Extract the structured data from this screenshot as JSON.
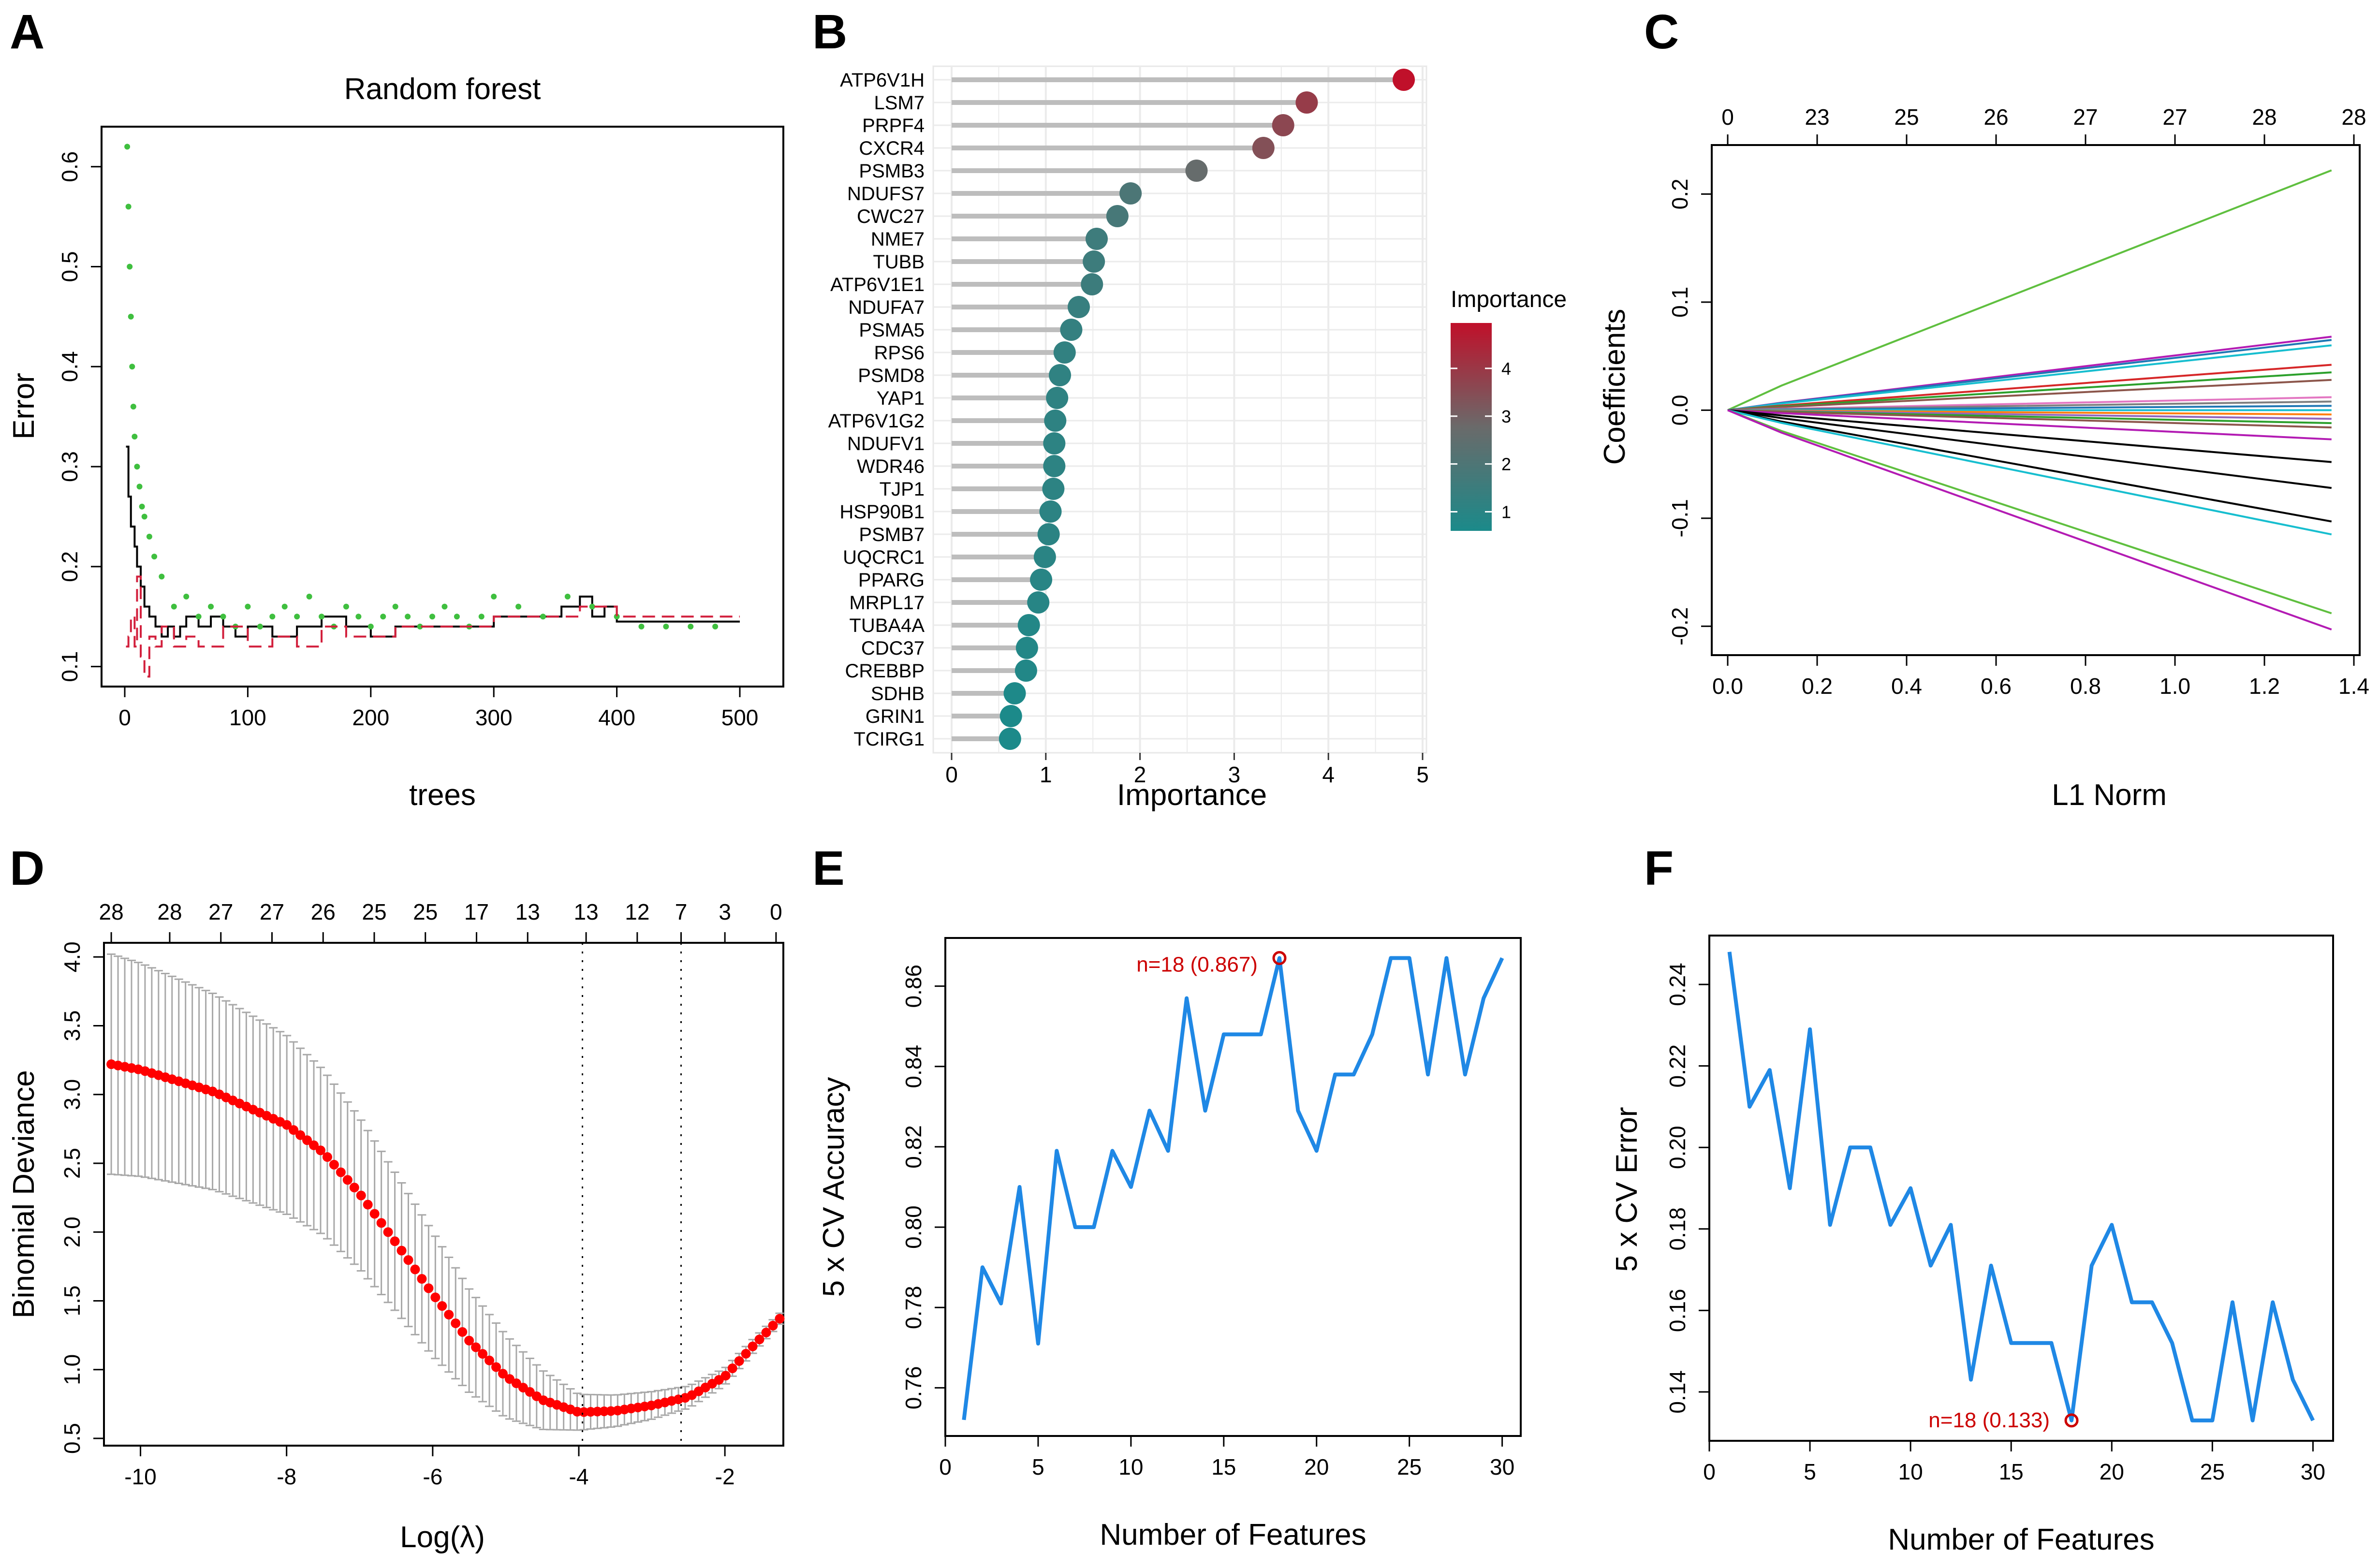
{
  "panels": {
    "A": {
      "letter": "A",
      "title": "Random forest",
      "xlabel": "trees",
      "ylabel": "Error"
    },
    "B": {
      "letter": "B",
      "xlabel": "Importance",
      "legend_title": "Importance"
    },
    "C": {
      "letter": "C",
      "xlabel": "L1 Norm",
      "ylabel": "Coefficients"
    },
    "D": {
      "letter": "D",
      "xlabel": "Log(λ)",
      "ylabel": "Binomial Deviance"
    },
    "E": {
      "letter": "E",
      "xlabel": "Number of Features",
      "ylabel": "5 x CV Accuracy",
      "annotation": "n=18 (0.867)"
    },
    "F": {
      "letter": "F",
      "xlabel": "Number of Features",
      "ylabel": "5 x CV Error",
      "annotation": "n=18 (0.133)"
    }
  },
  "colors": {
    "green": "#3fbf3f",
    "red": "#d21f3c",
    "black": "#000000",
    "blue": "#1f88e5",
    "low": "#1b8a8a",
    "mid": "#6a6a6a",
    "high": "#c0102a",
    "errorbar": "#a8a8a8",
    "point": "#ff0000",
    "annot": "#cc0000"
  },
  "chart_data": [
    {
      "id": "A",
      "type": "line",
      "title": "Random forest",
      "xlabel": "trees",
      "ylabel": "Error",
      "xlim": [
        0,
        500
      ],
      "ylim": [
        0.08,
        0.64
      ],
      "xticks": [
        0,
        100,
        200,
        300,
        400,
        500
      ],
      "yticks": [
        0.1,
        0.2,
        0.3,
        0.4,
        0.5,
        0.6
      ],
      "series": [
        {
          "name": "OOB",
          "style": "solid",
          "color": "black",
          "points": [
            [
              1,
              0.32
            ],
            [
              3,
              0.27
            ],
            [
              5,
              0.24
            ],
            [
              8,
              0.22
            ],
            [
              10,
              0.2
            ],
            [
              13,
              0.18
            ],
            [
              16,
              0.16
            ],
            [
              20,
              0.15
            ],
            [
              25,
              0.14
            ],
            [
              30,
              0.13
            ],
            [
              35,
              0.14
            ],
            [
              40,
              0.13
            ],
            [
              45,
              0.14
            ],
            [
              50,
              0.15
            ],
            [
              60,
              0.14
            ],
            [
              70,
              0.15
            ],
            [
              80,
              0.14
            ],
            [
              90,
              0.13
            ],
            [
              100,
              0.14
            ],
            [
              120,
              0.13
            ],
            [
              140,
              0.14
            ],
            [
              160,
              0.15
            ],
            [
              180,
              0.14
            ],
            [
              200,
              0.13
            ],
            [
              220,
              0.14
            ],
            [
              240,
              0.14
            ],
            [
              260,
              0.14
            ],
            [
              280,
              0.14
            ],
            [
              290,
              0.14
            ],
            [
              300,
              0.15
            ],
            [
              320,
              0.15
            ],
            [
              340,
              0.15
            ],
            [
              355,
              0.16
            ],
            [
              370,
              0.17
            ],
            [
              380,
              0.15
            ],
            [
              390,
              0.16
            ],
            [
              400,
              0.145
            ],
            [
              450,
              0.145
            ],
            [
              500,
              0.145
            ]
          ]
        },
        {
          "name": "class 1",
          "style": "points",
          "color": "green",
          "points": [
            [
              2,
              0.62
            ],
            [
              3,
              0.56
            ],
            [
              4,
              0.5
            ],
            [
              5,
              0.45
            ],
            [
              6,
              0.4
            ],
            [
              7,
              0.36
            ],
            [
              8,
              0.33
            ],
            [
              10,
              0.3
            ],
            [
              12,
              0.28
            ],
            [
              14,
              0.26
            ],
            [
              16,
              0.25
            ],
            [
              20,
              0.23
            ],
            [
              24,
              0.21
            ],
            [
              30,
              0.19
            ],
            [
              40,
              0.16
            ],
            [
              50,
              0.17
            ],
            [
              60,
              0.15
            ],
            [
              70,
              0.16
            ],
            [
              80,
              0.15
            ],
            [
              90,
              0.14
            ],
            [
              100,
              0.16
            ],
            [
              110,
              0.14
            ],
            [
              120,
              0.15
            ],
            [
              130,
              0.16
            ],
            [
              140,
              0.15
            ],
            [
              150,
              0.17
            ],
            [
              160,
              0.15
            ],
            [
              170,
              0.14
            ],
            [
              180,
              0.16
            ],
            [
              190,
              0.15
            ],
            [
              200,
              0.14
            ],
            [
              210,
              0.15
            ],
            [
              220,
              0.16
            ],
            [
              230,
              0.15
            ],
            [
              240,
              0.14
            ],
            [
              250,
              0.15
            ],
            [
              260,
              0.16
            ],
            [
              270,
              0.15
            ],
            [
              280,
              0.14
            ],
            [
              290,
              0.15
            ],
            [
              300,
              0.17
            ],
            [
              320,
              0.16
            ],
            [
              340,
              0.15
            ],
            [
              360,
              0.17
            ],
            [
              380,
              0.16
            ],
            [
              400,
              0.15
            ],
            [
              420,
              0.14
            ],
            [
              440,
              0.14
            ],
            [
              460,
              0.14
            ],
            [
              480,
              0.14
            ]
          ]
        },
        {
          "name": "class 2",
          "style": "dashed",
          "color": "red",
          "points": [
            [
              1,
              0.12
            ],
            [
              3,
              0.13
            ],
            [
              5,
              0.15
            ],
            [
              8,
              0.12
            ],
            [
              10,
              0.19
            ],
            [
              13,
              0.11
            ],
            [
              16,
              0.09
            ],
            [
              20,
              0.13
            ],
            [
              25,
              0.12
            ],
            [
              30,
              0.14
            ],
            [
              40,
              0.12
            ],
            [
              50,
              0.13
            ],
            [
              60,
              0.12
            ],
            [
              80,
              0.14
            ],
            [
              100,
              0.12
            ],
            [
              120,
              0.13
            ],
            [
              140,
              0.12
            ],
            [
              160,
              0.14
            ],
            [
              180,
              0.13
            ],
            [
              200,
              0.13
            ],
            [
              220,
              0.14
            ],
            [
              260,
              0.14
            ],
            [
              300,
              0.15
            ],
            [
              340,
              0.15
            ],
            [
              370,
              0.16
            ],
            [
              400,
              0.15
            ],
            [
              450,
              0.15
            ],
            [
              500,
              0.15
            ]
          ]
        }
      ]
    },
    {
      "id": "B",
      "type": "lollipop",
      "xlabel": "Importance",
      "xlim": [
        0,
        5
      ],
      "xticks": [
        0,
        1,
        2,
        3,
        4,
        5
      ],
      "legend_title": "Importance",
      "legend_ticks": [
        1,
        2,
        3,
        4
      ],
      "categories": [
        "ATP6V1H",
        "LSM7",
        "PRPF4",
        "CXCR4",
        "PSMB3",
        "NDUFS7",
        "CWC27",
        "NME7",
        "TUBB",
        "ATP6V1E1",
        "NDUFA7",
        "PSMA5",
        "RPS6",
        "PSMD8",
        "YAP1",
        "ATP6V1G2",
        "NDUFV1",
        "WDR46",
        "TJP1",
        "HSP90B1",
        "PSMB7",
        "UQCRC1",
        "PPARG",
        "MRPL17",
        "TUBA4A",
        "CDC37",
        "CREBBP",
        "SDHB",
        "GRIN1",
        "TCIRG1"
      ],
      "values": [
        4.8,
        3.77,
        3.52,
        3.31,
        2.6,
        1.9,
        1.76,
        1.54,
        1.51,
        1.49,
        1.35,
        1.27,
        1.2,
        1.15,
        1.12,
        1.1,
        1.09,
        1.09,
        1.08,
        1.05,
        1.03,
        0.99,
        0.95,
        0.92,
        0.82,
        0.8,
        0.79,
        0.67,
        0.63,
        0.62
      ]
    },
    {
      "id": "C",
      "type": "line",
      "xlabel": "L1 Norm",
      "ylabel": "Coefficients",
      "xlim": [
        0,
        1.4
      ],
      "ylim": [
        -0.22,
        0.24
      ],
      "xticks": [
        0.0,
        0.2,
        0.4,
        0.6,
        0.8,
        1.0,
        1.2,
        1.4
      ],
      "yticks": [
        -0.2,
        -0.1,
        0.0,
        0.1,
        0.2
      ],
      "top_ticks": [
        "0",
        "23",
        "25",
        "26",
        "27",
        "27",
        "28",
        "28"
      ],
      "series": [
        {
          "color": "#5fbf3f",
          "end": 0.222
        },
        {
          "color": "#b31bb3",
          "end": 0.068
        },
        {
          "color": "#1f77b4",
          "end": 0.065
        },
        {
          "color": "#17becf",
          "end": 0.06
        },
        {
          "color": "#d62728",
          "end": 0.042
        },
        {
          "color": "#2ca02c",
          "end": 0.035
        },
        {
          "color": "#8c564b",
          "end": 0.028
        },
        {
          "color": "#e377c2",
          "end": 0.012
        },
        {
          "color": "#7f7f7f",
          "end": 0.008
        },
        {
          "color": "#1f77b4",
          "end": 0.004
        },
        {
          "color": "#17becf",
          "end": 0.0
        },
        {
          "color": "#ff7f0e",
          "end": -0.004
        },
        {
          "color": "#9467bd",
          "end": -0.008
        },
        {
          "color": "#2ca02c",
          "end": -0.012
        },
        {
          "color": "#8c564b",
          "end": -0.016
        },
        {
          "color": "#b31bb3",
          "end": -0.027
        },
        {
          "color": "#000000",
          "end": -0.048
        },
        {
          "color": "#000000",
          "end": -0.072
        },
        {
          "color": "#000000",
          "end": -0.103
        },
        {
          "color": "#17becf",
          "end": -0.115
        },
        {
          "color": "#5fbf3f",
          "end": -0.188
        },
        {
          "color": "#b31bb3",
          "end": -0.203
        }
      ]
    },
    {
      "id": "D",
      "type": "scatter",
      "xlabel": "Log(λ)",
      "ylabel": "Binomial Deviance",
      "xlim": [
        -10.5,
        -1.2
      ],
      "ylim": [
        0.5,
        4.05
      ],
      "xticks": [
        -10,
        -8,
        -6,
        -4,
        -2
      ],
      "yticks": [
        0.5,
        1.0,
        1.5,
        2.0,
        2.5,
        3.0,
        3.5,
        4.0
      ],
      "top_ticks": [
        {
          "x": -10.4,
          "label": "28"
        },
        {
          "x": -9.6,
          "label": "28"
        },
        {
          "x": -8.9,
          "label": "27"
        },
        {
          "x": -8.2,
          "label": "27"
        },
        {
          "x": -7.5,
          "label": "26"
        },
        {
          "x": -6.8,
          "label": "25"
        },
        {
          "x": -6.1,
          "label": "25"
        },
        {
          "x": -5.4,
          "label": "17"
        },
        {
          "x": -4.7,
          "label": "13"
        },
        {
          "x": -3.9,
          "label": "13"
        },
        {
          "x": -3.2,
          "label": "12"
        },
        {
          "x": -2.6,
          "label": "7"
        },
        {
          "x": -2.0,
          "label": "3"
        },
        {
          "x": -1.3,
          "label": "0"
        }
      ],
      "vlines": [
        -3.95,
        -2.6
      ],
      "curve": {
        "x_start": -10.4,
        "x_end": -1.25,
        "n": 100,
        "knots": [
          [
            -10.4,
            3.22
          ],
          [
            -10,
            3.18
          ],
          [
            -9,
            3.02
          ],
          [
            -8,
            2.78
          ],
          [
            -7.5,
            2.58
          ],
          [
            -7,
            2.28
          ],
          [
            -6.5,
            1.92
          ],
          [
            -6,
            1.55
          ],
          [
            -5.5,
            1.21
          ],
          [
            -5,
            0.95
          ],
          [
            -4.5,
            0.78
          ],
          [
            -4,
            0.69
          ],
          [
            -3.5,
            0.7
          ],
          [
            -3,
            0.74
          ],
          [
            -2.5,
            0.8
          ],
          [
            -2,
            0.95
          ],
          [
            -1.6,
            1.18
          ],
          [
            -1.25,
            1.37
          ]
        ],
        "halfwidth_knots": [
          [
            -10.4,
            0.8
          ],
          [
            -8,
            0.65
          ],
          [
            -6,
            0.45
          ],
          [
            -5,
            0.3
          ],
          [
            -4,
            0.13
          ],
          [
            -3,
            0.1
          ],
          [
            -2,
            0.06
          ],
          [
            -1.25,
            0.04
          ]
        ]
      }
    },
    {
      "id": "E",
      "type": "line",
      "xlabel": "Number of Features",
      "ylabel": "5 x CV Accuracy",
      "xlim": [
        0,
        31
      ],
      "ylim": [
        0.748,
        0.872
      ],
      "xticks": [
        0,
        5,
        10,
        15,
        20,
        25,
        30
      ],
      "yticks": [
        0.76,
        0.78,
        0.8,
        0.82,
        0.84,
        0.86
      ],
      "x": [
        1,
        2,
        3,
        4,
        5,
        6,
        7,
        8,
        9,
        10,
        11,
        12,
        13,
        14,
        15,
        16,
        17,
        18,
        19,
        20,
        21,
        22,
        23,
        24,
        25,
        26,
        27,
        28,
        29,
        30
      ],
      "y": [
        0.752,
        0.79,
        0.781,
        0.81,
        0.771,
        0.819,
        0.8,
        0.8,
        0.819,
        0.81,
        0.829,
        0.819,
        0.857,
        0.829,
        0.848,
        0.848,
        0.848,
        0.867,
        0.829,
        0.819,
        0.838,
        0.838,
        0.848,
        0.867,
        0.867,
        0.838,
        0.867,
        0.838,
        0.857,
        0.867
      ],
      "highlight": {
        "x": 18,
        "y": 0.867,
        "label": "n=18 (0.867)"
      }
    },
    {
      "id": "F",
      "type": "line",
      "xlabel": "Number of Features",
      "ylabel": "5 x CV Error",
      "xlim": [
        0,
        31
      ],
      "ylim": [
        0.128,
        0.252
      ],
      "xticks": [
        0,
        5,
        10,
        15,
        20,
        25,
        30
      ],
      "yticks": [
        0.14,
        0.16,
        0.18,
        0.2,
        0.22,
        0.24
      ],
      "x": [
        1,
        2,
        3,
        4,
        5,
        6,
        7,
        8,
        9,
        10,
        11,
        12,
        13,
        14,
        15,
        16,
        17,
        18,
        19,
        20,
        21,
        22,
        23,
        24,
        25,
        26,
        27,
        28,
        29,
        30
      ],
      "y": [
        0.248,
        0.21,
        0.219,
        0.19,
        0.229,
        0.181,
        0.2,
        0.2,
        0.181,
        0.19,
        0.171,
        0.181,
        0.143,
        0.171,
        0.152,
        0.152,
        0.152,
        0.133,
        0.171,
        0.181,
        0.162,
        0.162,
        0.152,
        0.133,
        0.133,
        0.162,
        0.133,
        0.162,
        0.143,
        0.133
      ],
      "highlight": {
        "x": 18,
        "y": 0.133,
        "label": "n=18 (0.133)"
      }
    }
  ]
}
